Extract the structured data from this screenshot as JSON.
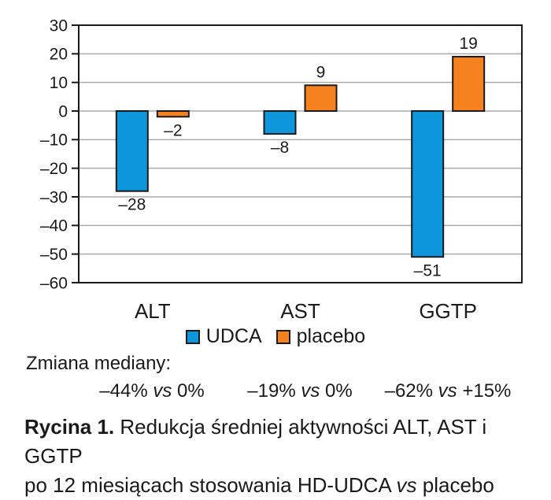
{
  "chart_data": {
    "type": "bar",
    "title": "",
    "categories": [
      "ALT",
      "AST",
      "GGTP"
    ],
    "series": [
      {
        "name": "UDCA",
        "color": "#0D96DB",
        "values": [
          -28,
          -8,
          -51
        ]
      },
      {
        "name": "placebo",
        "color": "#F5821F",
        "values": [
          -2,
          9,
          19
        ]
      }
    ],
    "xlabel": "",
    "ylabel": "",
    "ylim": [
      -60,
      30
    ],
    "ytick_step": 10,
    "grid": true,
    "legend_position": "bottom",
    "value_labels": true
  },
  "colors": {
    "grid": "#AAAAAA",
    "frame": "#1A1A1A",
    "text": "#1A1A1A",
    "udca_blue": "#0D96DB",
    "placebo_orange": "#F5821F"
  },
  "annotations": {
    "heading": "Zmiana mediany:",
    "items": [
      {
        "before": "–44% ",
        "vs": "vs",
        "after": " 0%"
      },
      {
        "before": "–19% ",
        "vs": "vs",
        "after": " 0%"
      },
      {
        "before": "–62% ",
        "vs": "vs",
        "after": " +15%"
      }
    ]
  },
  "caption": {
    "label": "Rycina 1.",
    "line1": " Redukcja średniej aktywności ALT, AST i GGTP",
    "line2_before_vs": "po 12 miesiącach stosowania HD-UDCA ",
    "vs": "vs",
    "line2_after_vs": " placebo"
  }
}
